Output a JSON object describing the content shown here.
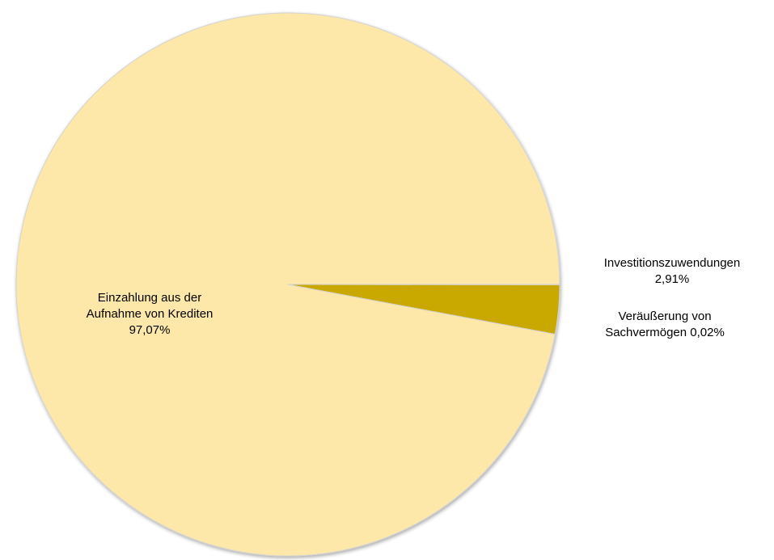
{
  "chart_data": {
    "type": "pie",
    "title": "",
    "slices": [
      {
        "name": "Einzahlung aus der Aufnahme von Krediten",
        "value": 97.07,
        "label_lines": [
          "Einzahlung aus der",
          "Aufnahme von Krediten",
          "97,07%"
        ],
        "color": "#fde8a9"
      },
      {
        "name": "Investitionszuwendungen",
        "value": 2.91,
        "label_lines": [
          "Investitionszuwendungen",
          "2,91%"
        ],
        "color": "#c9a800"
      },
      {
        "name": "Veräußerung von Sachvermögen",
        "value": 0.02,
        "label_lines": [
          "Veräußerung von",
          "Sachvermögen 0,02%"
        ],
        "color": "#b89a3e"
      }
    ],
    "start_angle_deg": 0,
    "direction": "counterclockwise",
    "colors": {
      "edge": "#d3d3d3",
      "text": "#000000"
    }
  }
}
